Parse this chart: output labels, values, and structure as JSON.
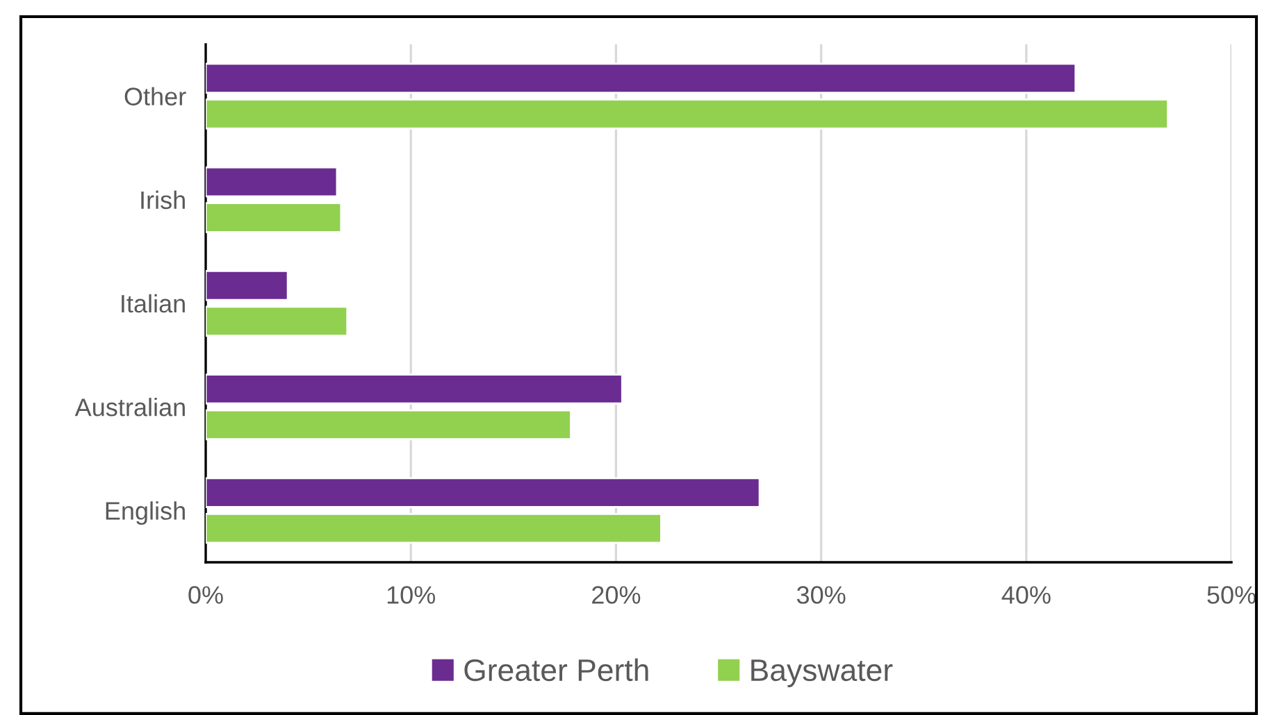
{
  "chart_data": {
    "type": "bar",
    "orientation": "horizontal",
    "categories": [
      "Other",
      "Irish",
      "Italian",
      "Australian",
      "English"
    ],
    "series": [
      {
        "name": "Greater Perth",
        "color": "#6a2c91",
        "values": [
          42.4,
          6.4,
          4.0,
          20.3,
          27.0
        ]
      },
      {
        "name": "Bayswater",
        "color": "#92d050",
        "values": [
          46.9,
          6.6,
          6.9,
          17.8,
          22.2
        ]
      }
    ],
    "xlim": [
      0,
      50
    ],
    "xticks": [
      {
        "value": 0,
        "label": "0%"
      },
      {
        "value": 10,
        "label": "10%"
      },
      {
        "value": 20,
        "label": "20%"
      },
      {
        "value": 30,
        "label": "30%"
      },
      {
        "value": 40,
        "label": "40%"
      },
      {
        "value": 50,
        "label": "50%"
      }
    ],
    "grid": "x",
    "legend": "bottom"
  }
}
